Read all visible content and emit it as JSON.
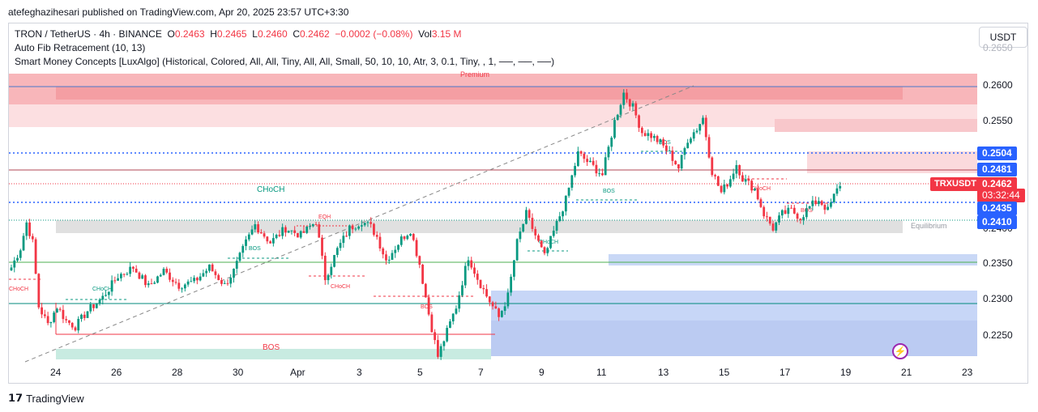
{
  "header": {
    "published": "atefeghazihesari published on TradingView.com, Apr 20, 2025 23:57 UTC+3:30"
  },
  "legend": {
    "symbol": "TRON / TetherUS · 4h · BINANCE",
    "o_label": "O",
    "o_value": "0.2463",
    "h_label": "H",
    "h_value": "0.2465",
    "l_label": "L",
    "l_value": "0.2460",
    "c_label": "C",
    "c_value": "0.2462",
    "change": "−0.0002 (−0.08%)",
    "vol_label": "Vol",
    "vol_value": "3.15 M",
    "indicator1": "Auto Fib Retracement (10, 13)",
    "indicator2": "Smart Money Concepts [LuxAlgo] (Historical, Colored, All, All, Tiny, All, All, Small, 50, 10, 10, Atr, 3, 0.1, Tiny, , 1, ──, ──, ──)"
  },
  "currency_button": "USDT",
  "footer": {
    "brand": "TradingView"
  },
  "colors": {
    "up": "#089981",
    "down": "#f23645",
    "blue_line": "#2962ff",
    "purple": "#9c27b0"
  },
  "price_labels": {
    "p2504": "0.2504",
    "p2481": "0.2481",
    "symbol_tag": "TRXUSDT",
    "current": "0.2462",
    "countdown": "03:32:44",
    "p2435": "0.2435",
    "p2410": "0.2410"
  },
  "zone_labels": {
    "premium": "Premium",
    "equilibrium": "Equilibrium",
    "choch_big": "CHoCH",
    "bos_big": "BOS",
    "eqh": "EQH"
  },
  "chart_data": {
    "type": "candlestick",
    "symbol": "TRXUSDT",
    "timeframe": "4h",
    "y_axis_ticks": [
      "0.2600",
      "0.2550",
      "0.2300",
      "0.2250"
    ],
    "y_axis_partial_ticks": [
      "0.2650",
      "0.2400",
      "0.2350"
    ],
    "x_axis_ticks": [
      "24",
      "26",
      "28",
      "30",
      "Apr",
      "3",
      "5",
      "7",
      "9",
      "11",
      "13",
      "15",
      "17",
      "19",
      "21",
      "23"
    ],
    "horizontal_levels": [
      0.2504,
      0.2481,
      0.2462,
      0.2435,
      0.241
    ],
    "structure_labels": [
      "CHoCH",
      "BOS",
      "EQH",
      "BOS",
      "CHoCH",
      "BOS",
      "CHoCH",
      "BOS",
      "CHoCH",
      "BOS",
      "BOS",
      "CHoCH",
      "BOS"
    ],
    "grid": false,
    "approx_path": [
      [
        0,
        0.2345
      ],
      [
        3,
        0.2372
      ],
      [
        5,
        0.2408
      ],
      [
        7,
        0.238
      ],
      [
        9,
        0.229
      ],
      [
        12,
        0.2265
      ],
      [
        15,
        0.229
      ],
      [
        18,
        0.227
      ],
      [
        21,
        0.2262
      ],
      [
        25,
        0.2284
      ],
      [
        30,
        0.2303
      ],
      [
        35,
        0.2333
      ],
      [
        40,
        0.2345
      ],
      [
        45,
        0.2318
      ],
      [
        50,
        0.234
      ],
      [
        55,
        0.232
      ],
      [
        60,
        0.2325
      ],
      [
        65,
        0.2345
      ],
      [
        70,
        0.232
      ],
      [
        73,
        0.234
      ],
      [
        77,
        0.238
      ],
      [
        80,
        0.2405
      ],
      [
        85,
        0.238
      ],
      [
        90,
        0.24
      ],
      [
        95,
        0.239
      ],
      [
        100,
        0.241
      ],
      [
        103,
        0.233
      ],
      [
        107,
        0.237
      ],
      [
        111,
        0.24
      ],
      [
        115,
        0.241
      ],
      [
        118,
        0.2402
      ],
      [
        120,
        0.2388
      ],
      [
        123,
        0.2355
      ],
      [
        128,
        0.2385
      ],
      [
        131,
        0.2398
      ],
      [
        134,
        0.235
      ],
      [
        137,
        0.228
      ],
      [
        140,
        0.222
      ],
      [
        143,
        0.2255
      ],
      [
        146,
        0.229
      ],
      [
        150,
        0.236
      ],
      [
        153,
        0.233
      ],
      [
        156,
        0.2305
      ],
      [
        160,
        0.2275
      ],
      [
        163,
        0.2305
      ],
      [
        166,
        0.238
      ],
      [
        169,
        0.242
      ],
      [
        172,
        0.239
      ],
      [
        175,
        0.236
      ],
      [
        178,
        0.2395
      ],
      [
        182,
        0.244
      ],
      [
        186,
        0.2505
      ],
      [
        190,
        0.249
      ],
      [
        194,
        0.2475
      ],
      [
        198,
        0.255
      ],
      [
        201,
        0.259
      ],
      [
        204,
        0.257
      ],
      [
        207,
        0.2535
      ],
      [
        210,
        0.253
      ],
      [
        213,
        0.252
      ],
      [
        216,
        0.2505
      ],
      [
        219,
        0.2485
      ],
      [
        222,
        0.2525
      ],
      [
        225,
        0.254
      ],
      [
        227,
        0.2555
      ],
      [
        230,
        0.248
      ],
      [
        233,
        0.245
      ],
      [
        236,
        0.247
      ],
      [
        238,
        0.249
      ],
      [
        240,
        0.247
      ],
      [
        244,
        0.2455
      ],
      [
        247,
        0.242
      ],
      [
        250,
        0.24
      ],
      [
        253,
        0.242
      ],
      [
        256,
        0.2425
      ],
      [
        259,
        0.2415
      ],
      [
        262,
        0.243
      ],
      [
        265,
        0.244
      ],
      [
        268,
        0.2425
      ],
      [
        270,
        0.2445
      ],
      [
        272,
        0.2462
      ]
    ]
  }
}
